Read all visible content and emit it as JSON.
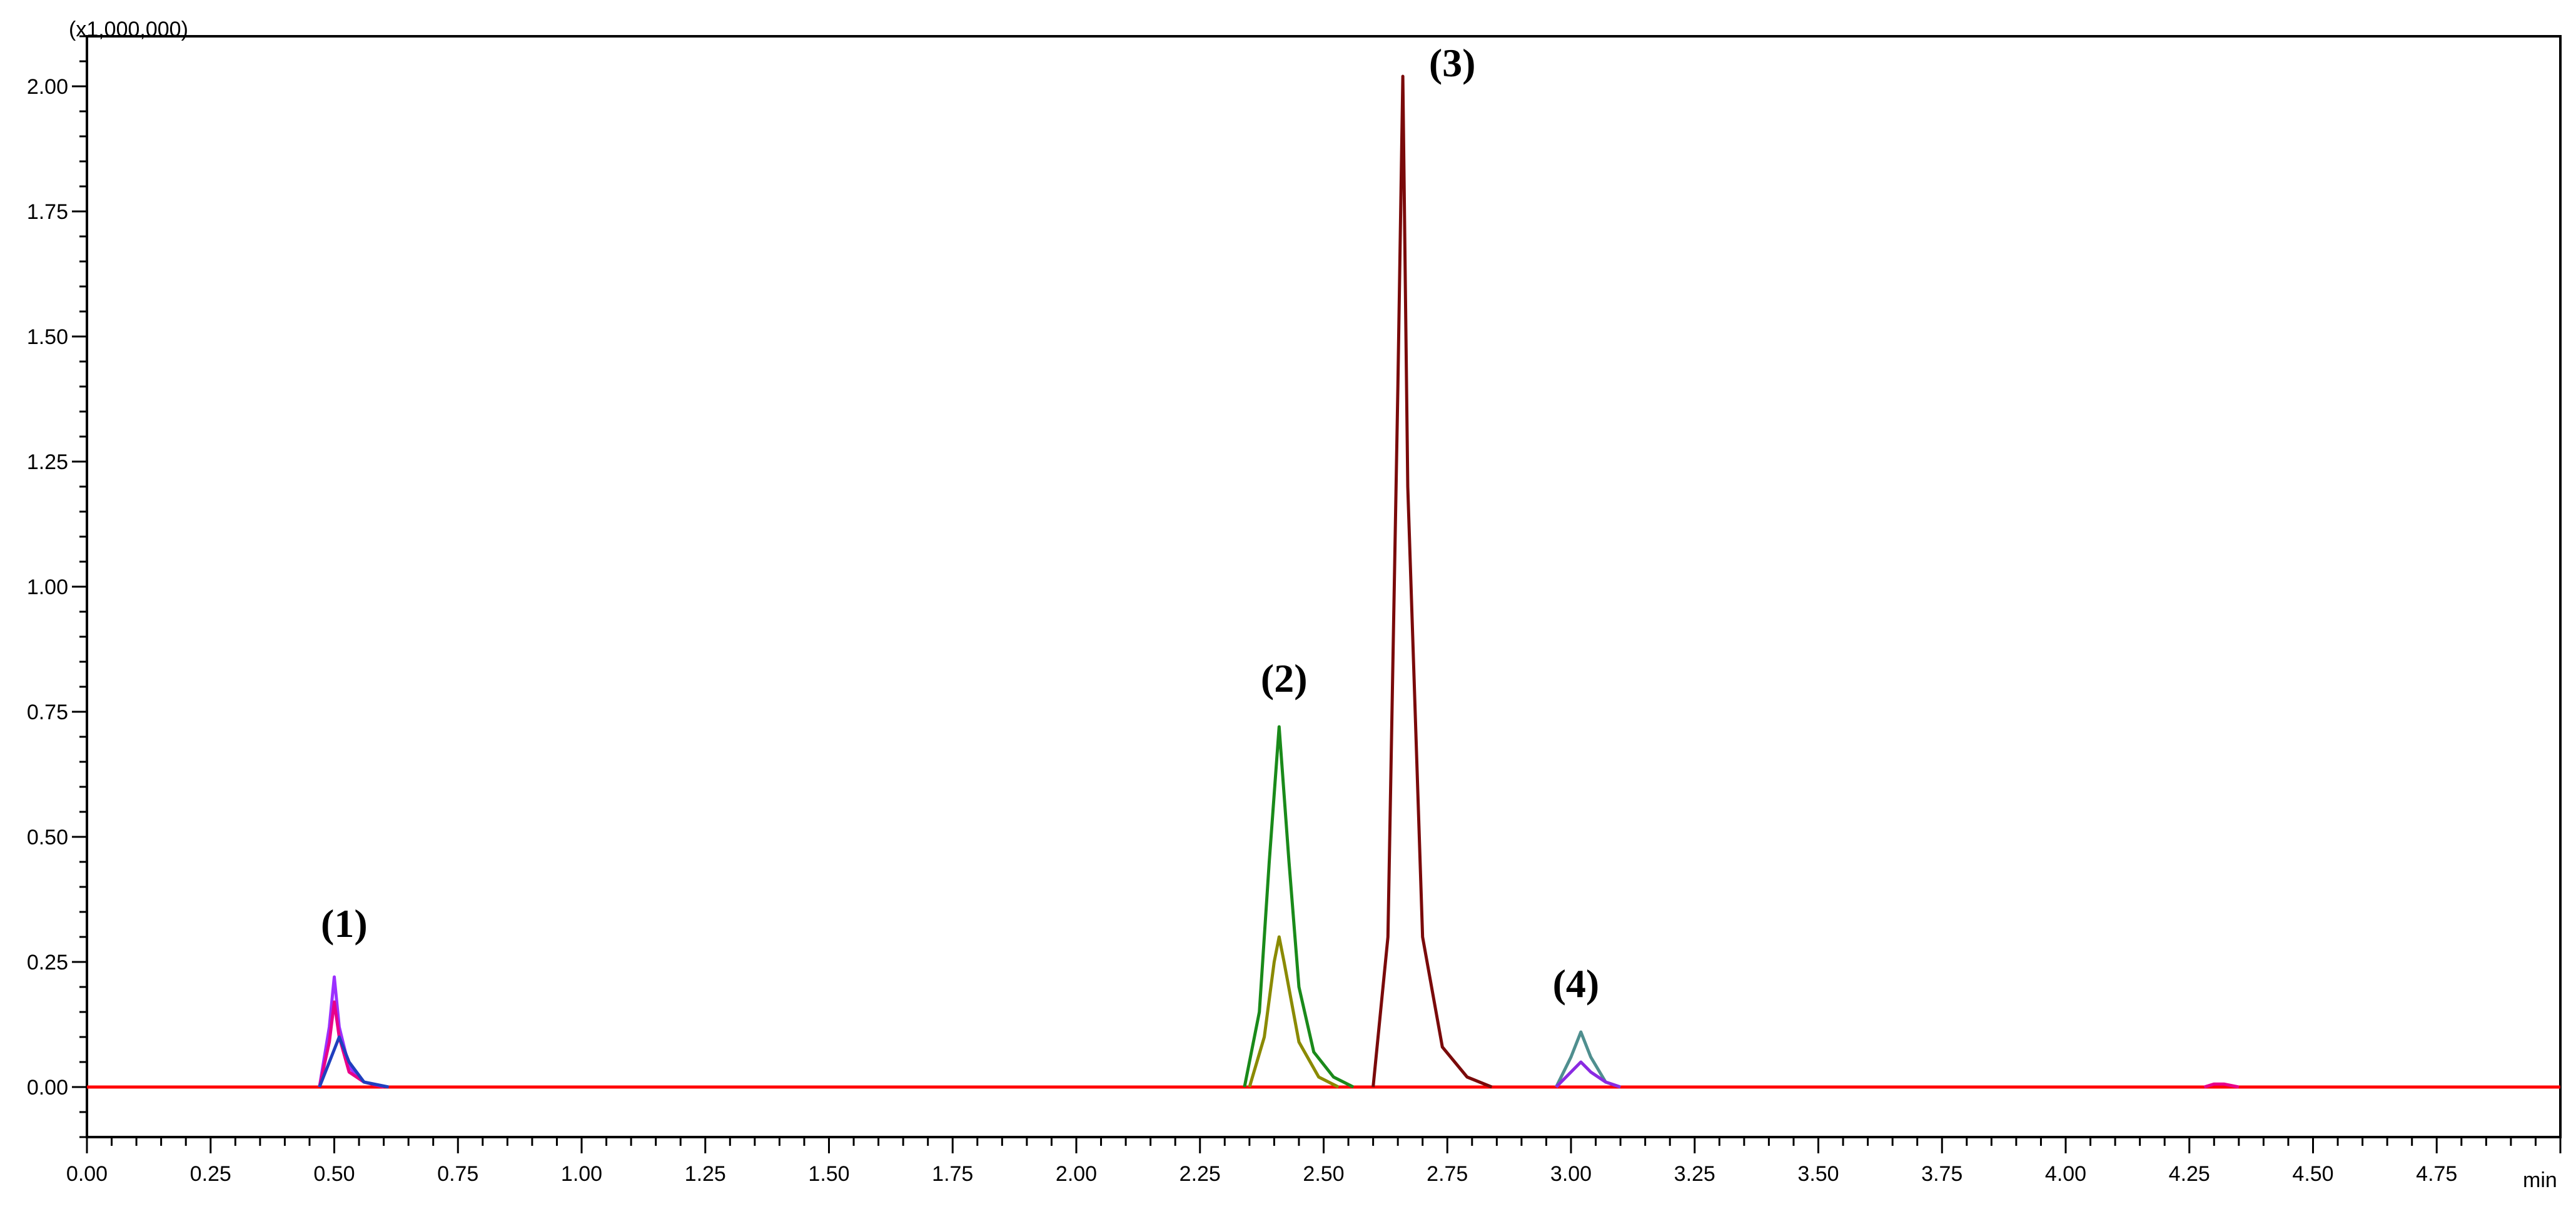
{
  "chart_data": {
    "type": "line",
    "title": "",
    "xlabel": "min",
    "ylabel": "",
    "y_multiplier_label": "(x1,000,000)",
    "xlim": [
      0.0,
      5.0
    ],
    "ylim": [
      -0.1,
      2.1
    ],
    "grid": false,
    "x_ticks": [
      0.0,
      0.25,
      0.5,
      0.75,
      1.0,
      1.25,
      1.5,
      1.75,
      2.0,
      2.25,
      2.5,
      2.75,
      3.0,
      3.25,
      3.5,
      3.75,
      4.0,
      4.25,
      4.5,
      4.75
    ],
    "x_tick_labels": [
      "0.00",
      "0.25",
      "0.50",
      "0.75",
      "1.00",
      "1.25",
      "1.50",
      "1.75",
      "2.00",
      "2.25",
      "2.50",
      "2.75",
      "3.00",
      "3.25",
      "3.50",
      "3.75",
      "4.00",
      "4.25",
      "4.50",
      "4.75"
    ],
    "y_ticks": [
      0.0,
      0.25,
      0.5,
      0.75,
      1.0,
      1.25,
      1.5,
      1.75,
      2.0
    ],
    "y_tick_labels": [
      "0.00",
      "0.25",
      "0.50",
      "0.75",
      "1.00",
      "1.25",
      "1.50",
      "1.75",
      "2.00"
    ],
    "series": [
      {
        "color": "#ff0000",
        "x": [
          0.0,
          5.0
        ],
        "y": [
          0.0,
          0.0
        ]
      },
      {
        "color": "#9b30ff",
        "x": [
          0.47,
          0.49,
          0.5,
          0.51,
          0.53,
          0.56,
          0.6
        ],
        "y": [
          0.0,
          0.12,
          0.22,
          0.12,
          0.04,
          0.01,
          0.0
        ]
      },
      {
        "color": "#e8008a",
        "x": [
          0.47,
          0.49,
          0.5,
          0.51,
          0.53,
          0.56,
          0.6
        ],
        "y": [
          0.0,
          0.09,
          0.17,
          0.1,
          0.03,
          0.01,
          0.0
        ]
      },
      {
        "color": "#1f3fbf",
        "x": [
          0.47,
          0.49,
          0.51,
          0.53,
          0.56,
          0.61
        ],
        "y": [
          0.0,
          0.05,
          0.1,
          0.05,
          0.01,
          0.0
        ]
      },
      {
        "color": "#1a8a1a",
        "x": [
          2.34,
          2.37,
          2.39,
          2.41,
          2.43,
          2.45,
          2.48,
          2.52,
          2.56
        ],
        "y": [
          0.0,
          0.15,
          0.45,
          0.72,
          0.45,
          0.2,
          0.07,
          0.02,
          0.0
        ]
      },
      {
        "color": "#8a8a00",
        "x": [
          2.35,
          2.38,
          2.4,
          2.41,
          2.42,
          2.45,
          2.49,
          2.53
        ],
        "y": [
          0.0,
          0.1,
          0.25,
          0.3,
          0.25,
          0.09,
          0.02,
          0.0
        ]
      },
      {
        "color": "#7a0a0a",
        "x": [
          2.6,
          2.63,
          2.65,
          2.66,
          2.67,
          2.7,
          2.74,
          2.79,
          2.84
        ],
        "y": [
          0.0,
          0.3,
          1.4,
          2.02,
          1.2,
          0.3,
          0.08,
          0.02,
          0.0
        ]
      },
      {
        "color": "#4f8f8f",
        "x": [
          2.97,
          3.0,
          3.02,
          3.04,
          3.07,
          3.1
        ],
        "y": [
          0.0,
          0.06,
          0.11,
          0.06,
          0.01,
          0.0
        ]
      },
      {
        "color": "#8a2be2",
        "x": [
          2.97,
          3.0,
          3.02,
          3.04,
          3.07,
          3.1
        ],
        "y": [
          0.0,
          0.03,
          0.05,
          0.03,
          0.01,
          0.0
        ]
      },
      {
        "color": "#e8008a",
        "x": [
          4.28,
          4.3,
          4.32,
          4.35
        ],
        "y": [
          0.0,
          0.006,
          0.006,
          0.0
        ]
      }
    ],
    "annotations": [
      {
        "text": "(1)",
        "x": 0.52,
        "y": 0.3
      },
      {
        "text": "(2)",
        "x": 2.42,
        "y": 0.79
      },
      {
        "text": "(3)",
        "x": 2.76,
        "y": 2.02
      },
      {
        "text": "(4)",
        "x": 3.01,
        "y": 0.18
      }
    ]
  }
}
